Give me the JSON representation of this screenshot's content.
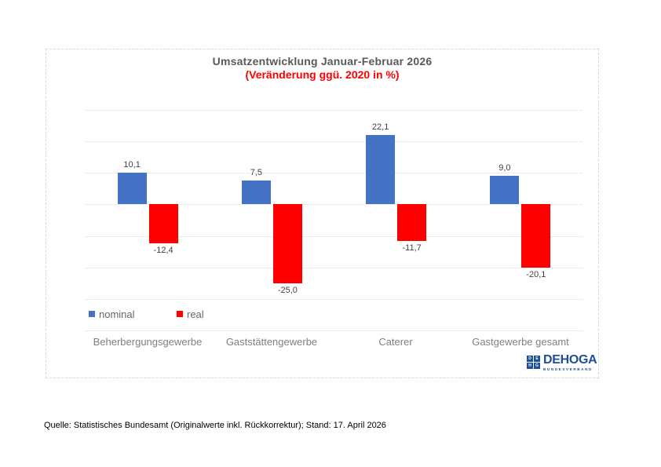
{
  "page": {
    "source_note": "Quelle: Statistisches Bundesamt (Originalwerte inkl. Rückkorrektur); Stand: 17. April 2026"
  },
  "chart_data": {
    "type": "bar",
    "title": "Umsatzentwicklung Januar-Februar 2026",
    "subtitle": "(Veränderung ggü. 2020 in %)",
    "title_color": "#595959",
    "subtitle_color": "#ff0000",
    "categories": [
      "Beherbergungsgewerbe",
      "Gaststättengewerbe",
      "Caterer",
      "Gastgewerbe gesamt"
    ],
    "series": [
      {
        "name": "nominal",
        "color": "#4472c4",
        "values": [
          10.1,
          7.5,
          22.1,
          9.0
        ]
      },
      {
        "name": "real",
        "color": "#ff0000",
        "values": [
          -12.4,
          -25.0,
          -11.7,
          -20.1
        ]
      }
    ],
    "value_labels": [
      [
        "10,1",
        "7,5",
        "22,1",
        "9,0"
      ],
      [
        "-12,4",
        "-25,0",
        "-11,7",
        "-20,1"
      ]
    ],
    "ylim": [
      -40,
      30
    ],
    "gridline_step": 10,
    "grid": true,
    "y_axis_labels_visible": false,
    "legend_position": "bottom-left-inside"
  },
  "legend": {
    "items": [
      {
        "label": "nominal",
        "color": "#4472c4"
      },
      {
        "label": "real",
        "color": "#ff0000"
      }
    ]
  },
  "logo": {
    "name": "DEHOGA",
    "subtext": "BUNDESVERBAND",
    "color": "#1f4e97",
    "tiles": [
      "D",
      "E",
      "H",
      "G"
    ]
  }
}
